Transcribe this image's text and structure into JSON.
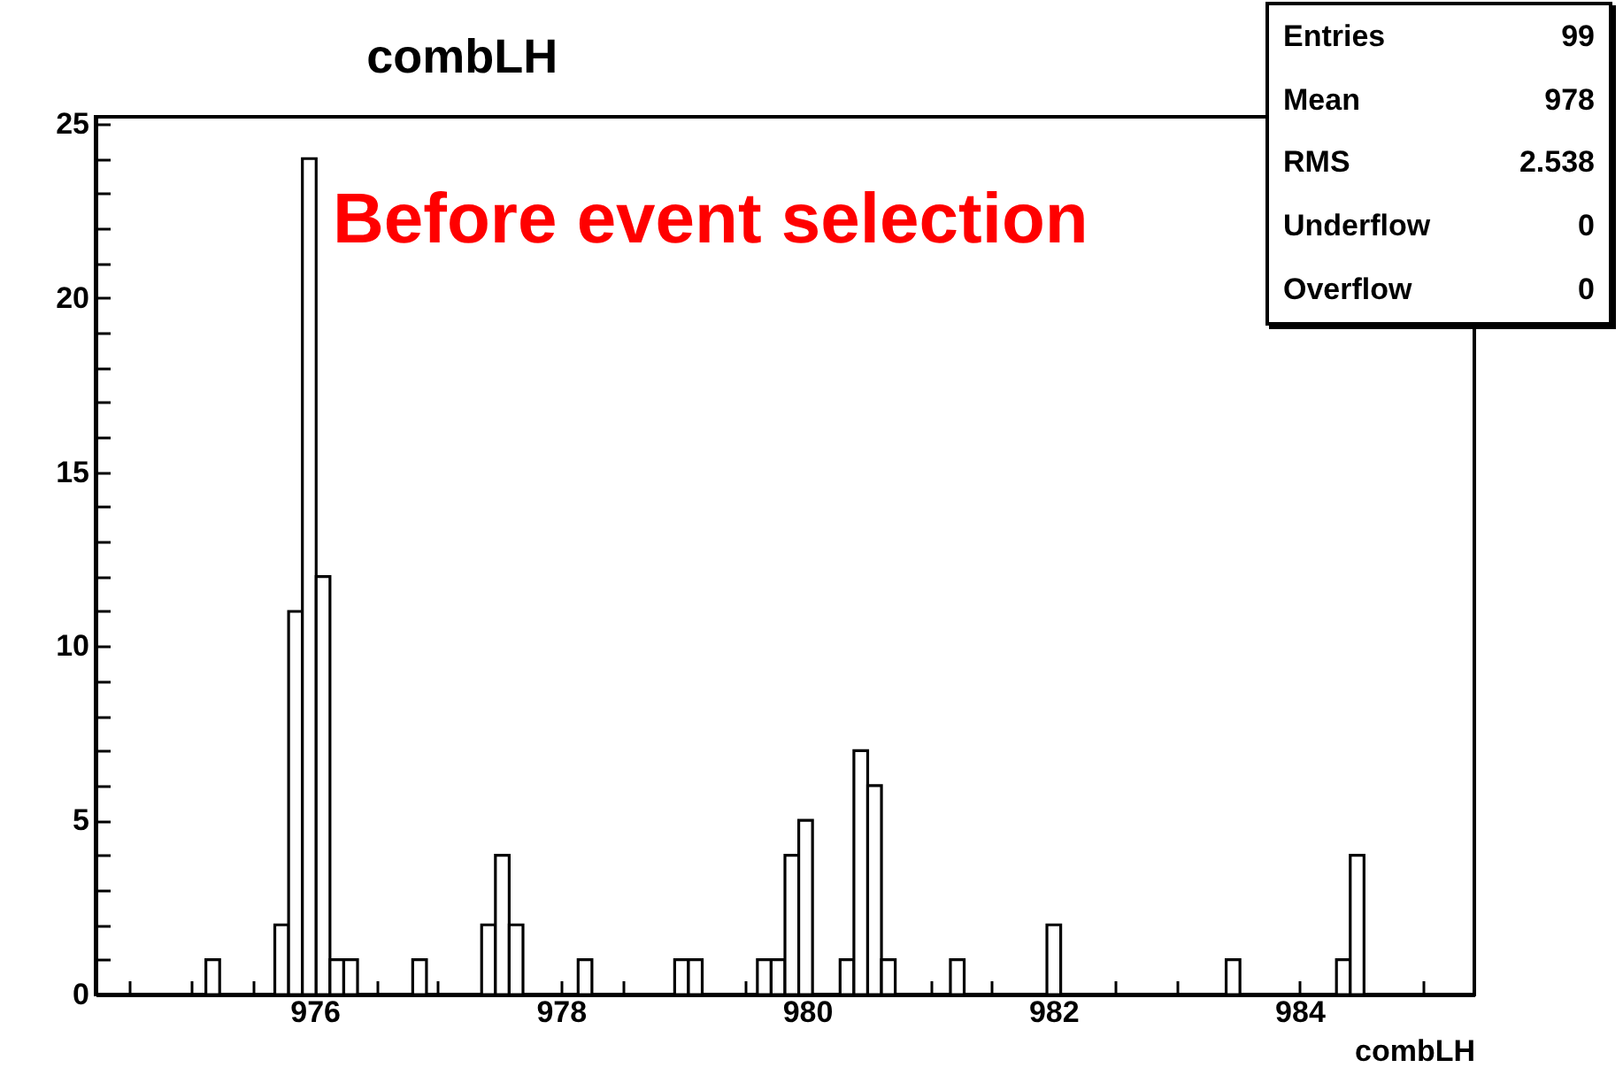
{
  "chart_data": {
    "type": "histogram",
    "title": "combLH",
    "xlabel": "combLH",
    "color": "#000000",
    "annotations": [
      "Before event selection",
      "Entries",
      "99",
      "Mean",
      "978",
      "RMS",
      "2.538",
      "Underflow",
      "0",
      "Overflow",
      "0"
    ],
    "bins": [
      975.116,
      975.228,
      975.34,
      975.452,
      975.564,
      975.676,
      975.788,
      975.9,
      976.012,
      976.124,
      976.236,
      976.348,
      976.46,
      976.572,
      976.684,
      976.796,
      976.908,
      977.02,
      977.132,
      977.244,
      977.356,
      977.468,
      977.58,
      977.692,
      977.804,
      977.916,
      978.028,
      978.14,
      978.252,
      978.364,
      978.476,
      978.588,
      978.7,
      978.812,
      978.924,
      979.036,
      979.148,
      979.26,
      979.372,
      979.484,
      979.596,
      979.708,
      979.82,
      979.932,
      980.044,
      980.156,
      980.268,
      980.38,
      980.492,
      980.604,
      980.716,
      980.828,
      980.94,
      981.052,
      981.164,
      981.276,
      981.388,
      981.5,
      981.612,
      981.724,
      981.836,
      981.948,
      982.06,
      982.172,
      982.284,
      982.396,
      982.508,
      982.62,
      982.732,
      982.844,
      982.956,
      983.068,
      983.18,
      983.292,
      983.404,
      983.516,
      983.628,
      983.74,
      983.852,
      983.964,
      984.076,
      984.188,
      984.3,
      984.412,
      984.524
    ],
    "values": [
      1,
      0,
      0,
      0,
      0,
      2,
      11,
      24,
      12,
      1,
      1,
      0,
      0,
      0,
      0,
      1,
      0,
      0,
      0,
      0,
      2,
      4,
      2,
      0,
      0,
      0,
      0,
      1,
      0,
      0,
      0,
      0,
      0,
      0,
      1,
      1,
      0,
      0,
      0,
      0,
      1,
      1,
      4,
      5,
      0,
      0,
      1,
      7,
      6,
      1,
      0,
      0,
      0,
      0,
      1,
      0,
      0,
      0,
      0,
      0,
      0,
      2,
      0,
      0,
      0,
      0,
      0,
      0,
      0,
      0,
      0,
      0,
      0,
      0,
      1,
      0,
      0,
      0,
      0,
      0,
      0,
      0,
      1,
      4
    ],
    "xlim": [
      974.22,
      985.42
    ],
    "xticks": [
      {
        "value": 974.5,
        "label": null
      },
      {
        "value": 975,
        "label": null
      },
      {
        "value": 975.5,
        "label": null
      },
      976,
      {
        "value": 976.5,
        "label": null
      },
      {
        "value": 977,
        "label": null
      },
      {
        "value": 977.5,
        "label": null
      },
      978,
      {
        "value": 978.5,
        "label": null
      },
      {
        "value": 979,
        "label": null
      },
      {
        "value": 979.5,
        "label": null
      },
      980,
      {
        "value": 980.5,
        "label": null
      },
      {
        "value": 981,
        "label": null
      },
      {
        "value": 981.5,
        "label": null
      },
      982,
      {
        "value": 982.5,
        "label": null
      },
      {
        "value": 983,
        "label": null
      },
      {
        "value": 983.5,
        "label": null
      },
      984,
      {
        "value": 984.5,
        "label": null
      },
      {
        "value": 985,
        "label": null
      }
    ],
    "ylim": [
      0,
      25.2
    ],
    "yticks": [
      0,
      {
        "value": 1,
        "label": null
      },
      {
        "value": 2,
        "label": null
      },
      {
        "value": 3,
        "label": null
      },
      {
        "value": 4,
        "label": null
      },
      5,
      {
        "value": 6,
        "label": null
      },
      {
        "value": 7,
        "label": null
      },
      {
        "value": 8,
        "label": null
      },
      {
        "value": 9,
        "label": null
      },
      10,
      {
        "value": 11,
        "label": null
      },
      {
        "value": 12,
        "label": null
      },
      {
        "value": 13,
        "label": null
      },
      {
        "value": 14,
        "label": null
      },
      15,
      {
        "value": 16,
        "label": null
      },
      {
        "value": 17,
        "label": null
      },
      {
        "value": 18,
        "label": null
      },
      {
        "value": 19,
        "label": null
      },
      20,
      {
        "value": 21,
        "label": null
      },
      {
        "value": 22,
        "label": null
      },
      {
        "value": 23,
        "label": null
      },
      {
        "value": 24,
        "label": null
      },
      25
    ]
  }
}
